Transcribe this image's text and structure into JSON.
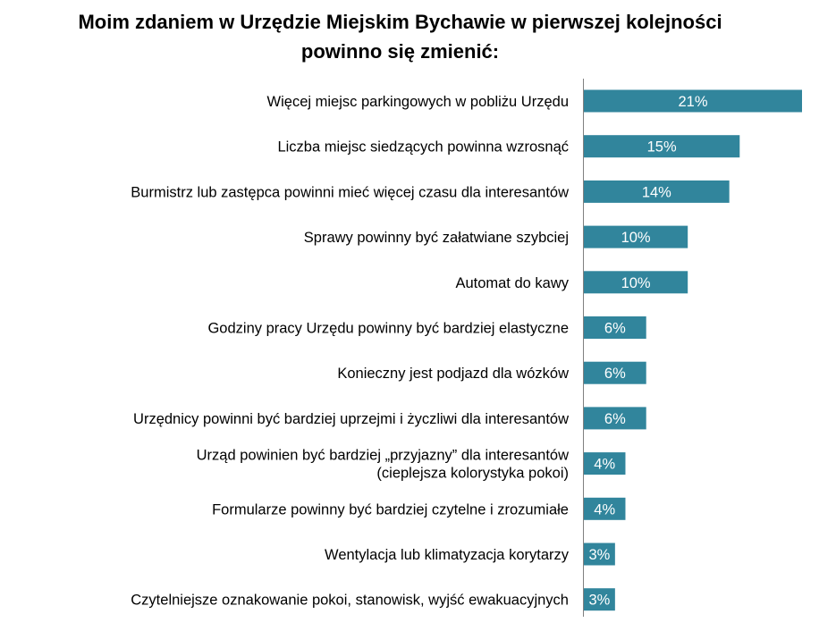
{
  "chart_data": {
    "type": "bar",
    "orientation": "horizontal",
    "title": [
      "Moim zdaniem w Urzędzie Miejskim Bychawie w pierwszej kolejności",
      "powinno się zmienić:"
    ],
    "bar_color": "#31859C",
    "value_suffix": "%",
    "xlim": [
      0,
      21
    ],
    "grid": false,
    "legend": "none",
    "categories": [
      [
        "Więcej miejsc parkingowych w pobliżu Urzędu"
      ],
      [
        "Liczba miejsc siedzących powinna wzrosnąć"
      ],
      [
        "Burmistrz lub zastępca powinni mieć więcej czasu dla interesantów"
      ],
      [
        "Sprawy powinny być załatwiane szybciej"
      ],
      [
        "Automat do kawy"
      ],
      [
        "Godziny pracy Urzędu powinny być bardziej elastyczne"
      ],
      [
        "Konieczny jest podjazd dla wózków"
      ],
      [
        "Urzędnicy powinni być bardziej uprzejmi i życzliwi dla interesantów"
      ],
      [
        "Urząd powinien być bardziej „przyjazny” dla interesantów",
        "(cieplejsza kolorystyka pokoi)"
      ],
      [
        "Formularze powinny być bardziej czytelne i zrozumiałe"
      ],
      [
        "Wentylacja lub klimatyzacja korytarzy"
      ],
      [
        "Czytelniejsze oznakowanie pokoi, stanowisk, wyjść ewakuacyjnych"
      ]
    ],
    "values": [
      21,
      15,
      14,
      10,
      10,
      6,
      6,
      6,
      4,
      4,
      3,
      3
    ],
    "value_labels": [
      "21%",
      "15%",
      "14%",
      "10%",
      "10%",
      "6%",
      "6%",
      "6%",
      "4%",
      "4%",
      "3%",
      "3%"
    ]
  }
}
